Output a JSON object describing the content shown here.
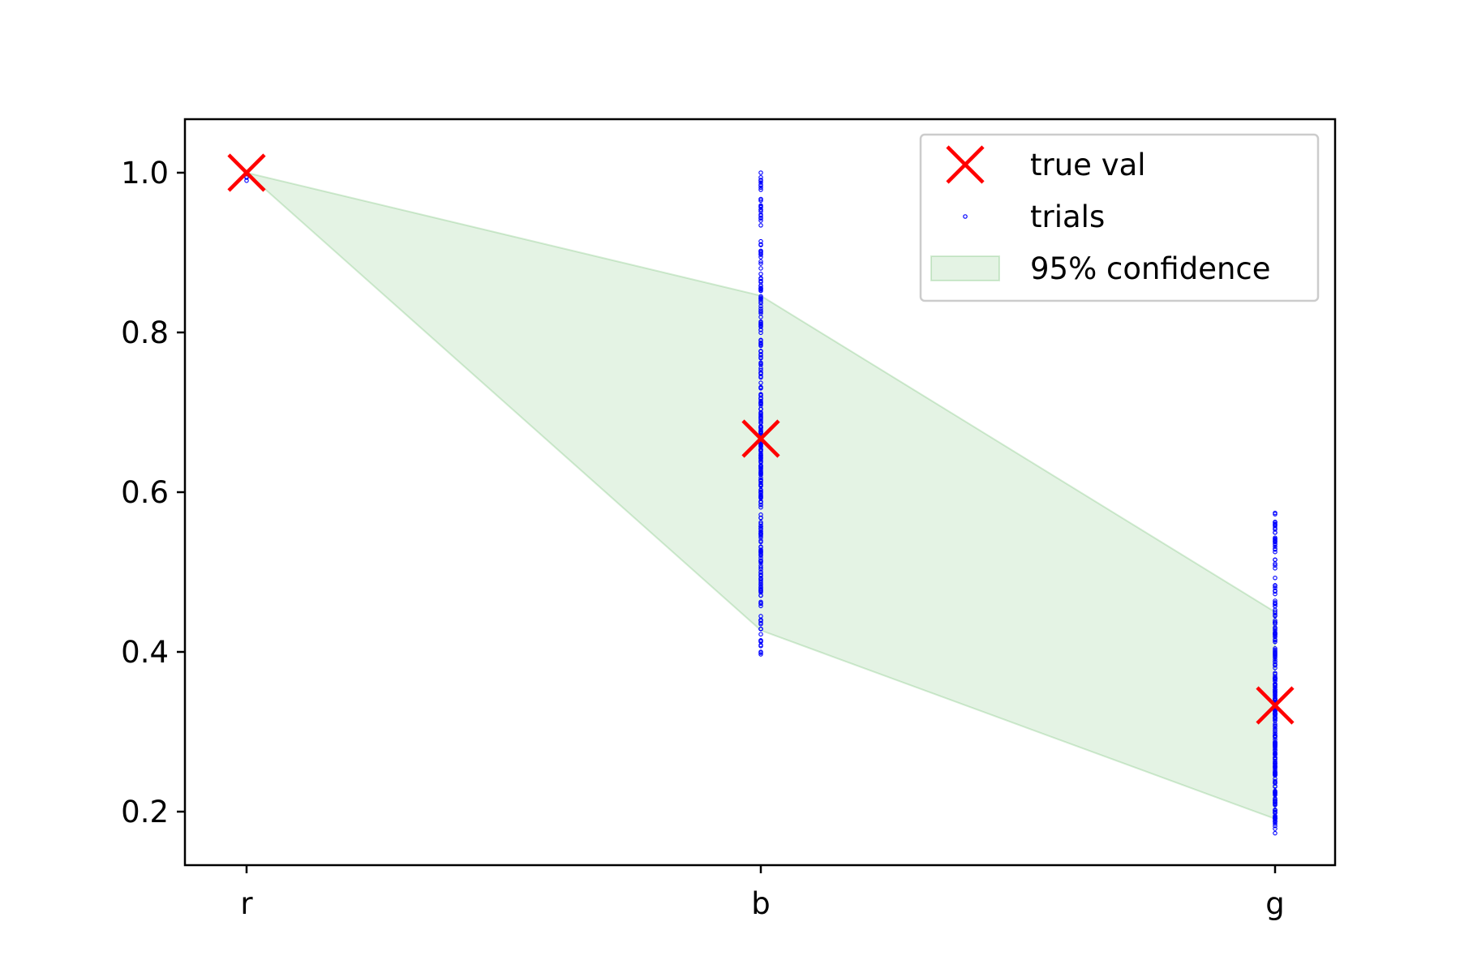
{
  "chart_data": {
    "type": "scatter",
    "title": "",
    "xlabel": "",
    "ylabel": "",
    "categories": [
      "r",
      "b",
      "g"
    ],
    "ylim": [
      0.133,
      1.067
    ],
    "yticks": [
      "0.2",
      "0.4",
      "0.6",
      "0.8",
      "1.0"
    ],
    "grid": false,
    "legend_position": "top-right",
    "series": [
      {
        "name": "true val",
        "marker": "x",
        "color": "#ff0000",
        "values": [
          1.0,
          0.667,
          0.333
        ]
      },
      {
        "name": "trials",
        "marker": "point",
        "color": "#0000ff",
        "distributions": [
          {
            "category": "r",
            "min": 0.99,
            "max": 1.0
          },
          {
            "category": "b",
            "min": 0.397,
            "max": 1.0
          },
          {
            "category": "g",
            "min": 0.173,
            "max": 0.574
          }
        ]
      },
      {
        "name": "95% confidence",
        "type": "area",
        "color": "#2ca02c",
        "lower": [
          1.0,
          0.427,
          0.191
        ],
        "upper": [
          1.0,
          0.846,
          0.45
        ]
      }
    ]
  }
}
